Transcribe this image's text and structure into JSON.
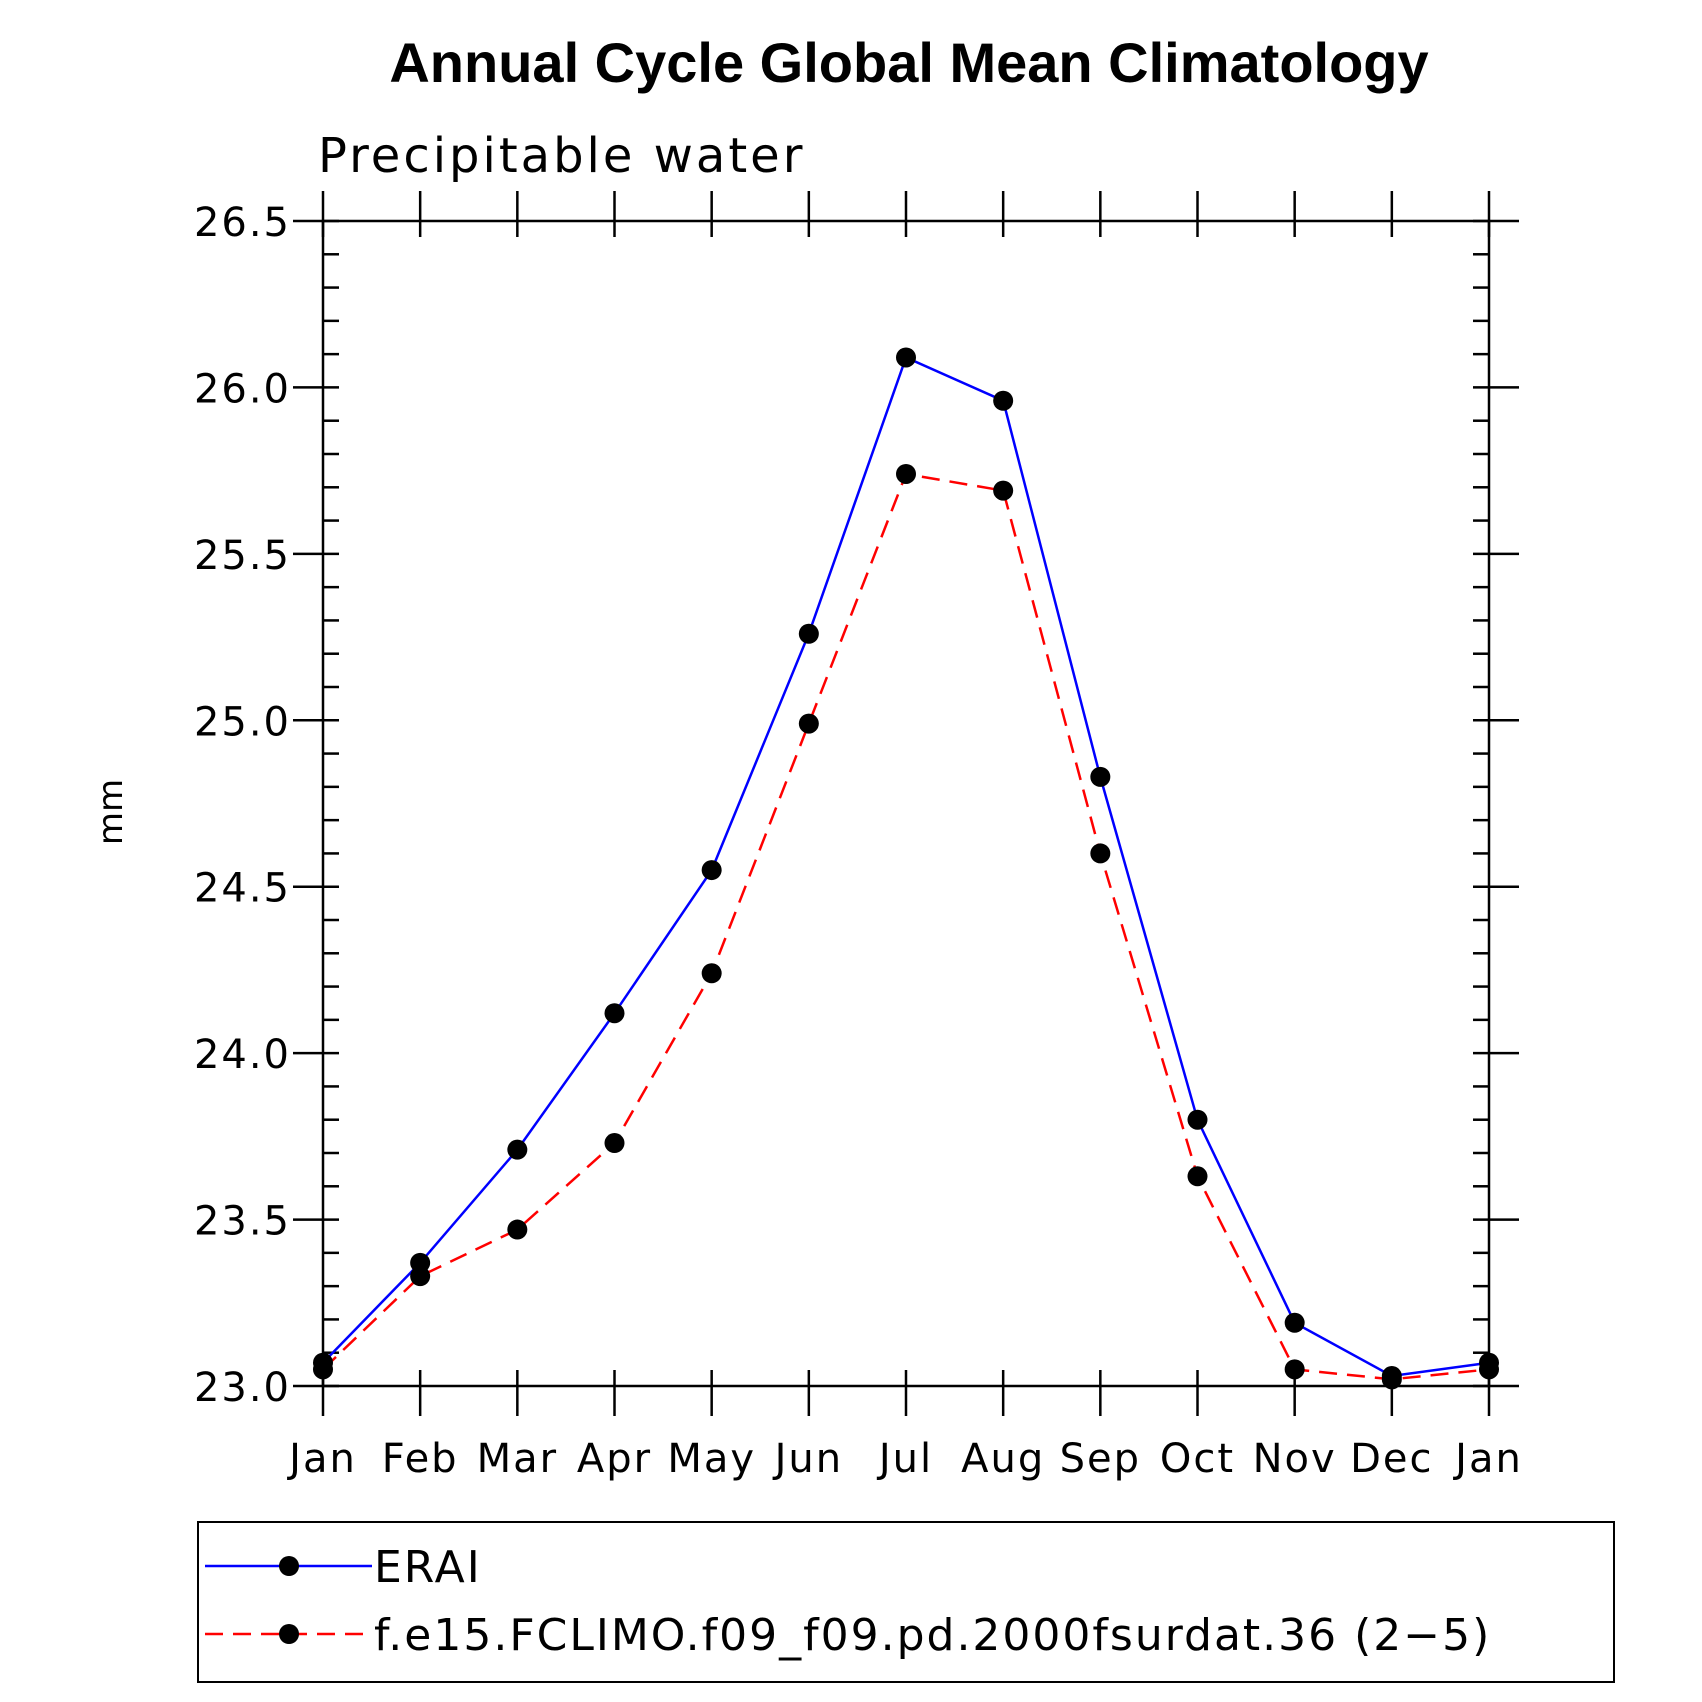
{
  "chart_data": {
    "type": "line",
    "title": "Annual Cycle Global Mean Climatology",
    "subtitle": "Precipitable water",
    "xlabel": "",
    "ylabel": "mm",
    "categories": [
      "Jan",
      "Feb",
      "Mar",
      "Apr",
      "May",
      "Jun",
      "Jul",
      "Aug",
      "Sep",
      "Oct",
      "Nov",
      "Dec",
      "Jan"
    ],
    "ylim": [
      23.0,
      26.5
    ],
    "yticks": [
      "23.0",
      "23.5",
      "24.0",
      "24.5",
      "25.0",
      "25.5",
      "26.0",
      "26.5"
    ],
    "grid": false,
    "legend_position": "bottom",
    "series": [
      {
        "name": "ERAI",
        "color": "#0000ff",
        "style": "solid",
        "marker": "filled-circle",
        "values": [
          23.07,
          23.37,
          23.71,
          24.12,
          24.55,
          25.26,
          26.09,
          25.96,
          24.83,
          23.8,
          23.19,
          23.03,
          23.07
        ]
      },
      {
        "name": "f.e15.FCLIMO.f09_f09.pd.2000fsurdat.36 (2−5)",
        "color": "#ff0000",
        "style": "dashed",
        "marker": "filled-circle",
        "values": [
          23.05,
          23.33,
          23.47,
          23.73,
          24.24,
          24.99,
          25.74,
          25.69,
          24.6,
          23.63,
          23.05,
          23.02,
          23.05
        ]
      }
    ]
  }
}
